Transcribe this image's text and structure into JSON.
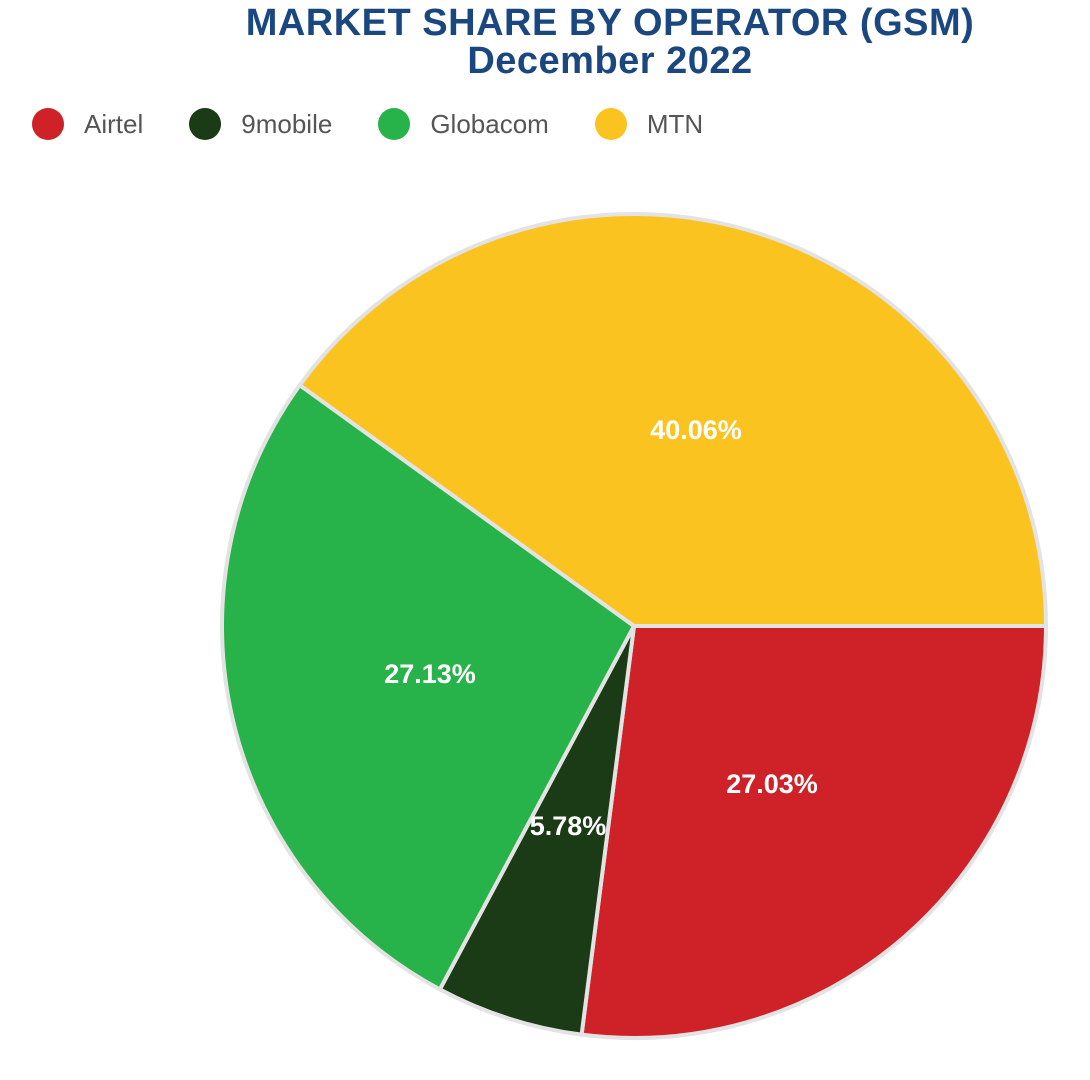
{
  "chart_data": {
    "type": "pie",
    "title": "MARKET SHARE BY OPERATOR (GSM)",
    "subtitle": "December 2022",
    "legend_position": "top-left",
    "slices": [
      {
        "name": "Airtel",
        "value": 27.03,
        "label": "27.03%",
        "color": "#cf2128"
      },
      {
        "name": "9mobile",
        "value": 5.78,
        "label": "5.78%",
        "color": "#1b3a16"
      },
      {
        "name": "Globacom",
        "value": 27.13,
        "label": "27.13%",
        "color": "#28b24a"
      },
      {
        "name": "MTN",
        "value": 40.06,
        "label": "40.06%",
        "color": "#fbc31f"
      }
    ]
  }
}
